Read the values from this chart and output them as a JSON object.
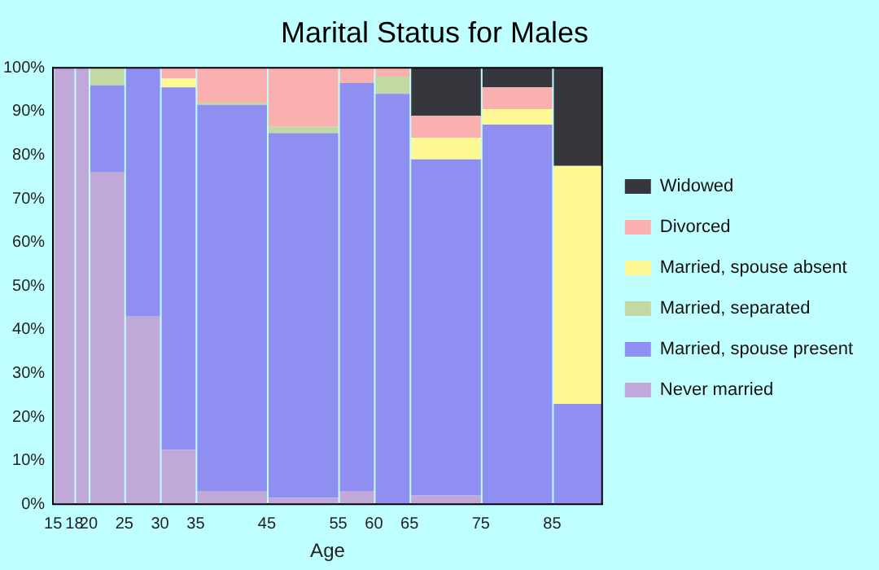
{
  "chart_data": {
    "type": "bar",
    "title": "Marital Status for Males",
    "xlabel": "Age",
    "stacked": true,
    "x": [
      16.5,
      19,
      22.5,
      27.5,
      32.5,
      40,
      50,
      57.5,
      62.5,
      70,
      80,
      88.5
    ],
    "xlim": [
      15,
      92
    ],
    "xticks": [
      15,
      18,
      20,
      25,
      30,
      35,
      45,
      55,
      60,
      65,
      75,
      85
    ],
    "ylim": [
      0,
      100
    ],
    "yticks": [
      {
        "value": 0,
        "label": "0%"
      },
      {
        "value": 10,
        "label": "10%"
      },
      {
        "value": 20,
        "label": "20%"
      },
      {
        "value": 30,
        "label": "30%"
      },
      {
        "value": 40,
        "label": "40%"
      },
      {
        "value": 50,
        "label": "50%"
      },
      {
        "value": 60,
        "label": "60%"
      },
      {
        "value": 70,
        "label": "70%"
      },
      {
        "value": 80,
        "label": "80%"
      },
      {
        "value": 90,
        "label": "90%"
      },
      {
        "value": 100,
        "label": "100%"
      }
    ],
    "grid": false,
    "legend": "right",
    "series": [
      {
        "name": "Never married",
        "color": "#c0a8d8",
        "values": [
          100,
          100,
          76,
          43,
          12.5,
          3,
          1.5,
          3,
          0,
          2,
          0,
          0
        ]
      },
      {
        "name": "Married, spouse present",
        "color": "#8f8ff2",
        "values": [
          0,
          0,
          20,
          57,
          83,
          88.5,
          83.5,
          93.5,
          94,
          77,
          87,
          23
        ]
      },
      {
        "name": "Married, separated",
        "color": "#c2d9a3",
        "values": [
          0,
          0,
          4,
          0,
          0,
          0.5,
          1.5,
          0,
          4,
          0,
          0,
          0
        ]
      },
      {
        "name": "Married, spouse absent",
        "color": "#fff995",
        "values": [
          0,
          0,
          0,
          0,
          2,
          0,
          0,
          0,
          0,
          5,
          3.5,
          54.5
        ]
      },
      {
        "name": "Divorced",
        "color": "#f9b0ae",
        "values": [
          0,
          0,
          0,
          0,
          2.5,
          8,
          13.5,
          3.5,
          2,
          5,
          5,
          0
        ]
      },
      {
        "name": "Widowed",
        "color": "#35373d",
        "values": [
          0,
          0,
          0,
          0,
          0,
          0,
          0,
          0,
          0,
          11,
          4.5,
          22.5
        ]
      }
    ]
  }
}
